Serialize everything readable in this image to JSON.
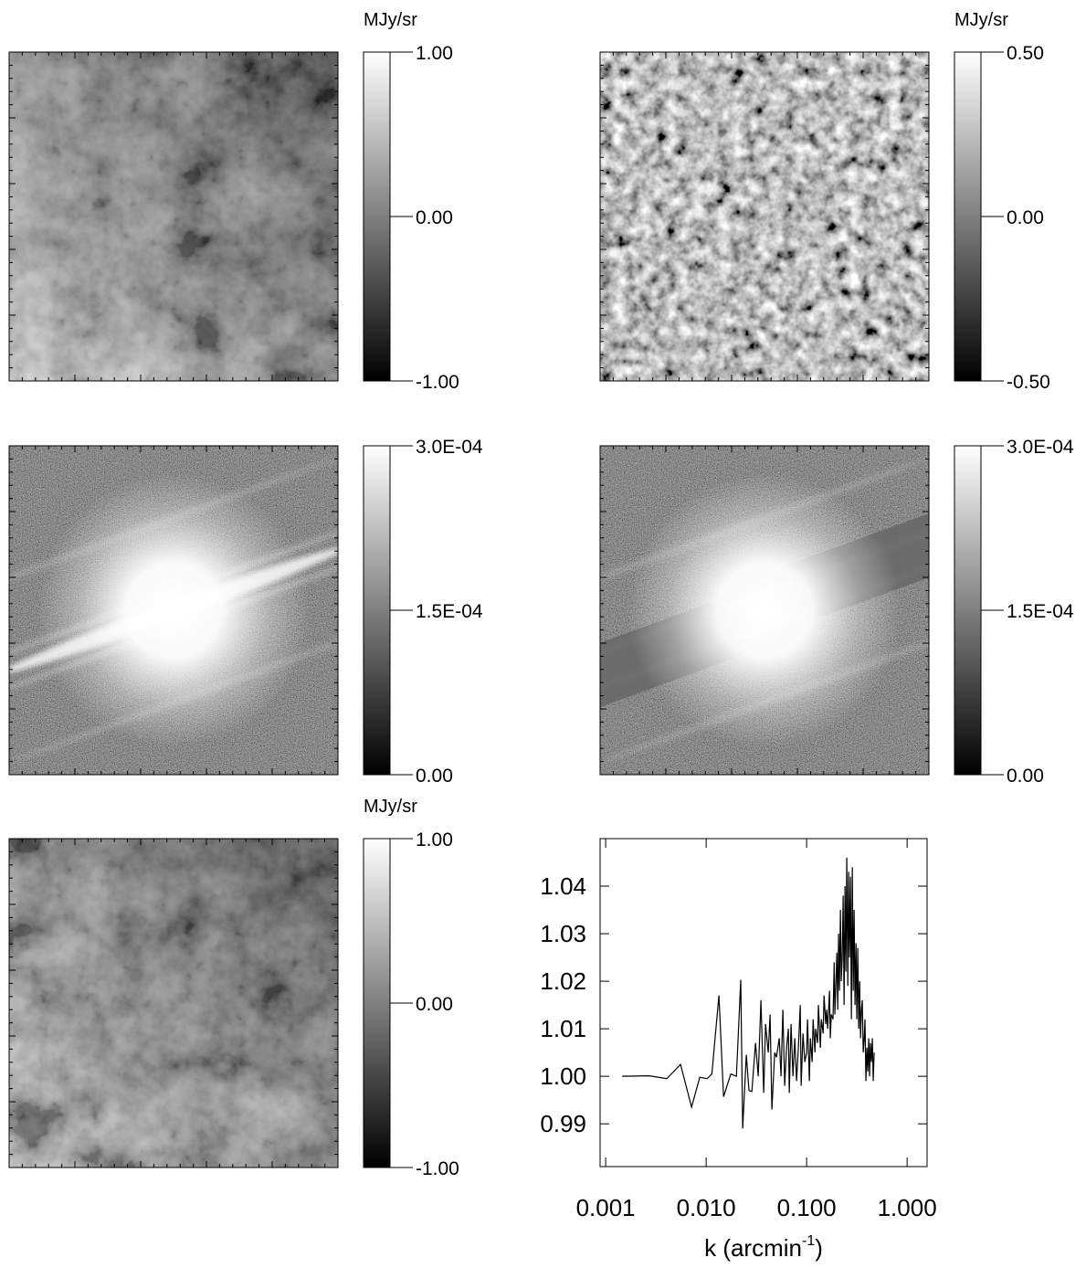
{
  "chart_data": [
    {
      "type": "image",
      "colorbar": {
        "label": "MJy/sr",
        "clim": [
          -1,
          1
        ],
        "ticks": [
          {
            "value": 1,
            "label": "1.00"
          },
          {
            "value": 0,
            "label": "0.00"
          },
          {
            "value": -1,
            "label": "-1.00"
          }
        ]
      }
    },
    {
      "type": "image",
      "colorbar": {
        "label": "MJy/sr",
        "clim": [
          -0.5,
          0.5
        ],
        "ticks": [
          {
            "value": 0.5,
            "label": "0.50"
          },
          {
            "value": 0,
            "label": "0.00"
          },
          {
            "value": -0.5,
            "label": "-0.50"
          }
        ]
      }
    },
    {
      "type": "image",
      "colorbar": {
        "clim": [
          0,
          0.0003
        ],
        "ticks": [
          {
            "value": 0.0003,
            "label": "3.0E-04"
          },
          {
            "value": 0.00015,
            "label": "1.5E-04"
          },
          {
            "value": 0,
            "label": "0.00"
          }
        ]
      }
    },
    {
      "type": "image",
      "colorbar": {
        "clim": [
          0,
          0.0003
        ],
        "ticks": [
          {
            "value": 0.0003,
            "label": "3.0E-04"
          },
          {
            "value": 0.00015,
            "label": "1.5E-04"
          },
          {
            "value": 0,
            "label": "0.00"
          }
        ]
      }
    },
    {
      "type": "image",
      "colorbar": {
        "label": "MJy/sr",
        "clim": [
          -1,
          1
        ],
        "ticks": [
          {
            "value": 1,
            "label": "1.00"
          },
          {
            "value": 0,
            "label": "0.00"
          },
          {
            "value": -1,
            "label": "-1.00"
          }
        ]
      }
    },
    {
      "type": "line",
      "color": "#000000",
      "xscale": "log",
      "xlim": [
        0.00088,
        1.58
      ],
      "ylim": [
        0.981,
        1.05
      ],
      "xticks": [
        {
          "value": 0.001,
          "label": "0.001"
        },
        {
          "value": 0.01,
          "label": "0.010"
        },
        {
          "value": 0.1,
          "label": "0.100"
        },
        {
          "value": 1,
          "label": "1.000"
        }
      ],
      "yticks": [
        0.99,
        {
          "value": 1,
          "label": "1.00"
        },
        1.01,
        1.02,
        1.03,
        1.04
      ],
      "xlabel": {
        "text": "k (arcmin",
        "sup": "-1",
        "tail": ")"
      },
      "x": [
        0.00146,
        0.00273,
        0.00406,
        0.00556,
        0.00716,
        0.00864,
        0.0102,
        0.0114,
        0.0134,
        0.0149,
        0.0176,
        0.02,
        0.0221,
        0.0231,
        0.0251,
        0.0267,
        0.0285,
        0.031,
        0.033,
        0.0351,
        0.0374,
        0.039,
        0.0415,
        0.0433,
        0.0451,
        0.0481,
        0.0501,
        0.0534,
        0.0556,
        0.058,
        0.0605,
        0.0631,
        0.0658,
        0.0672,
        0.07,
        0.0731,
        0.0762,
        0.0794,
        0.0828,
        0.0864,
        0.0882,
        0.092,
        0.0959,
        0.1,
        0.102,
        0.1065,
        0.109,
        0.1135,
        0.116,
        0.121,
        0.123,
        0.1285,
        0.131,
        0.137,
        0.14,
        0.146,
        0.149,
        0.155,
        0.158,
        0.162,
        0.169,
        0.172,
        0.176,
        0.183,
        0.188,
        0.191,
        0.2,
        0.204,
        0.208,
        0.212,
        0.217,
        0.221,
        0.226,
        0.231,
        0.236,
        0.241,
        0.246,
        0.251,
        0.257,
        0.262,
        0.267,
        0.273,
        0.279,
        0.285,
        0.291,
        0.297,
        0.303,
        0.31,
        0.316,
        0.323,
        0.33,
        0.337,
        0.344,
        0.351,
        0.358,
        0.366,
        0.374,
        0.381,
        0.389,
        0.398,
        0.406,
        0.415,
        0.423,
        0.432,
        0.441,
        0.451,
        0.46,
        0.47
      ],
      "values": [
        1.0,
        1.0001,
        0.9995,
        1.0025,
        0.9935,
        0.9998,
        0.9995,
        1.0005,
        1.017,
        0.9957,
        1.0005,
        1.0,
        1.0203,
        0.989,
        1.0045,
        0.997,
        0.9968,
        1.007,
        1.0,
        1.016,
        0.9965,
        1.011,
        1.005,
        1.013,
        0.993,
        1.005,
        1.004,
        1.008,
        1.0,
        1.014,
        0.998,
        1.006,
        1.01,
        0.9965,
        1.011,
        1.0,
        1.008,
        0.999,
        1.006,
        1.015,
        0.998,
        1.009,
        1.003,
        1.005,
        1.012,
        0.999,
        1.008,
        1.003,
        1.012,
        1.005,
        1.01,
        1.007,
        1.015,
        1.006,
        1.012,
        1.009,
        1.017,
        1.011,
        1.014,
        1.01,
        1.018,
        1.008,
        1.013,
        1.012,
        1.024,
        1.013,
        1.026,
        1.014,
        1.03,
        1.018,
        1.035,
        1.02,
        1.025,
        1.038,
        1.015,
        1.04,
        1.022,
        1.046,
        1.019,
        1.043,
        1.025,
        1.042,
        1.012,
        1.044,
        1.018,
        1.035,
        1.015,
        1.028,
        1.012,
        1.027,
        1.01,
        1.02,
        1.008,
        1.014,
        1.016,
        1.005,
        1.008,
        1.012,
        0.999,
        1.006,
        1.001,
        1.008,
        1.0,
        1.007,
        1.003,
        1.008,
        0.999,
        1.005
      ]
    }
  ]
}
